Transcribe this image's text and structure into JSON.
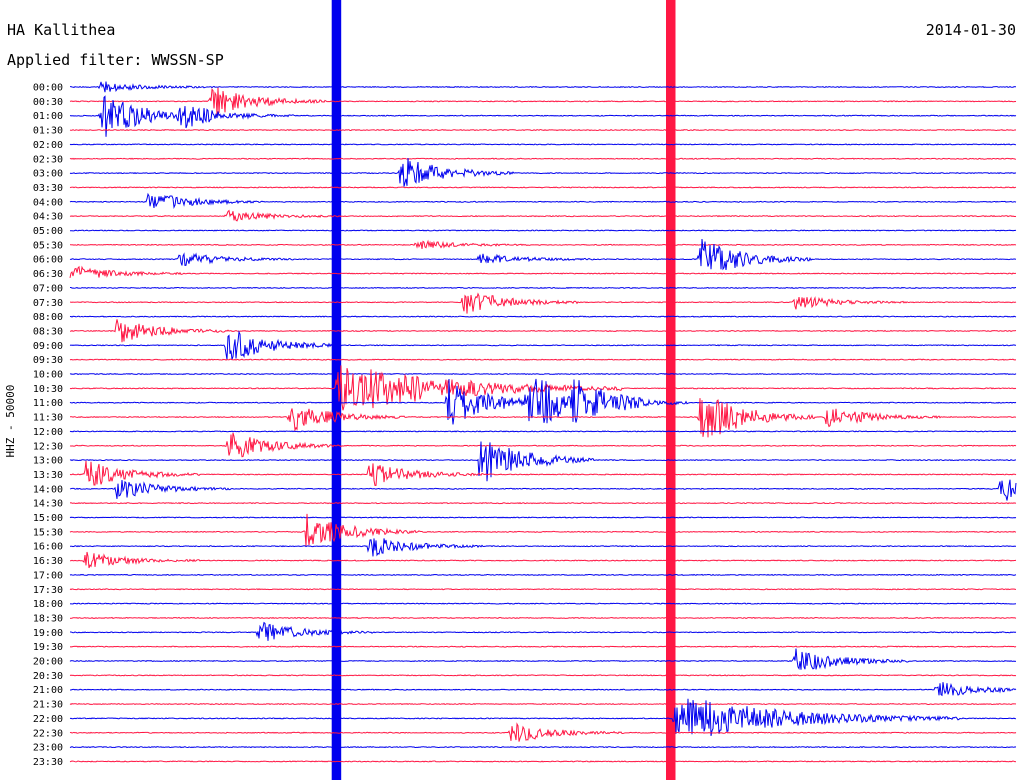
{
  "header": {
    "station": "HA Kallithea",
    "filter": "Applied filter: WWSSN-SP",
    "date": "2014-01-30"
  },
  "colors": {
    "trace_a": "#0000ee",
    "trace_b": "#ff1744",
    "background": "#ffffff",
    "text": "#000000"
  },
  "chart_data": {
    "type": "line",
    "title": "HA Kallithea",
    "subtitle": "Applied filter: WWSSN-SP",
    "date": "2014-01-30",
    "ylabel": "HHZ - 50000",
    "xlabel": "",
    "time_labels": [
      "00:00",
      "00:30",
      "01:00",
      "01:30",
      "02:00",
      "02:30",
      "03:00",
      "03:30",
      "04:00",
      "04:30",
      "05:00",
      "05:30",
      "06:00",
      "06:30",
      "07:00",
      "07:30",
      "08:00",
      "08:30",
      "09:00",
      "09:30",
      "10:00",
      "10:30",
      "11:00",
      "11:30",
      "12:00",
      "12:30",
      "13:00",
      "13:30",
      "14:00",
      "14:30",
      "15:00",
      "15:30",
      "16:00",
      "16:30",
      "17:00",
      "17:30",
      "18:00",
      "18:30",
      "19:00",
      "19:30",
      "20:00",
      "20:30",
      "21:00",
      "21:30",
      "22:00",
      "22:30",
      "23:00",
      "23:30"
    ],
    "trace_colors": [
      "#0000ee",
      "#ff1744"
    ],
    "trace_minutes": 30,
    "background_noise": 0.06,
    "events": [
      {
        "time": "00:00",
        "minute": 1,
        "amplitude": 0.8
      },
      {
        "time": "00:30",
        "minute": 4.5,
        "amplitude": 2.2
      },
      {
        "time": "01:00",
        "minute": 1,
        "amplitude": 3.5
      },
      {
        "time": "01:00",
        "minute": 3.5,
        "amplitude": 1.5
      },
      {
        "time": "03:00",
        "minute": 10.5,
        "amplitude": 2.5
      },
      {
        "time": "04:00",
        "minute": 2.5,
        "amplitude": 1.4
      },
      {
        "time": "04:30",
        "minute": 5,
        "amplitude": 0.8
      },
      {
        "time": "05:30",
        "minute": 11,
        "amplitude": 0.6
      },
      {
        "time": "06:00",
        "minute": 3.5,
        "amplitude": 1.0
      },
      {
        "time": "06:00",
        "minute": 13,
        "amplitude": 0.8
      },
      {
        "time": "06:00",
        "minute": 20,
        "amplitude": 3.0
      },
      {
        "time": "06:30",
        "minute": 0,
        "amplitude": 1.2
      },
      {
        "time": "07:30",
        "minute": 12.5,
        "amplitude": 1.8
      },
      {
        "time": "07:30",
        "minute": 23,
        "amplitude": 1.0
      },
      {
        "time": "08:30",
        "minute": 1.5,
        "amplitude": 1.8
      },
      {
        "time": "09:00",
        "minute": 5,
        "amplitude": 2.5
      },
      {
        "time": "11:00",
        "minute": 12,
        "amplitude": 3.5
      },
      {
        "time": "11:00",
        "minute": 14.5,
        "amplitude": 4.5
      },
      {
        "time": "11:00",
        "minute": 16,
        "amplitude": 2.5
      },
      {
        "time": "11:30",
        "minute": 7,
        "amplitude": 2.0
      },
      {
        "time": "11:30",
        "minute": 20,
        "amplitude": 4.0
      },
      {
        "time": "11:30",
        "minute": 24,
        "amplitude": 1.5
      },
      {
        "time": "12:30",
        "minute": 5,
        "amplitude": 2.2
      },
      {
        "time": "13:00",
        "minute": 13,
        "amplitude": 4.0
      },
      {
        "time": "13:30",
        "minute": 0.5,
        "amplitude": 2.0
      },
      {
        "time": "13:30",
        "minute": 9.5,
        "amplitude": 1.8
      },
      {
        "time": "14:00",
        "minute": 1.5,
        "amplitude": 1.5
      },
      {
        "time": "14:00",
        "minute": 29.5,
        "amplitude": 2.0
      },
      {
        "time": "15:30",
        "minute": 7.5,
        "amplitude": 2.5
      },
      {
        "time": "16:00",
        "minute": 9.5,
        "amplitude": 1.5
      },
      {
        "time": "16:30",
        "minute": 0.5,
        "amplitude": 1.2
      },
      {
        "time": "19:00",
        "minute": 6,
        "amplitude": 1.5
      },
      {
        "time": "20:00",
        "minute": 23,
        "amplitude": 2.0
      },
      {
        "time": "21:00",
        "minute": 27.5,
        "amplitude": 1.2
      },
      {
        "time": "22:30",
        "minute": 14,
        "amplitude": 1.5
      }
    ],
    "saturated_bands": [
      {
        "minute_start": 8.3,
        "minute_end": 8.6,
        "color": "#0000ee"
      },
      {
        "minute_start": 18.9,
        "minute_end": 19.2,
        "color": "#ff1744"
      }
    ],
    "long_events": [
      {
        "time": "10:30",
        "minute": 8.5,
        "amplitude": 4.0,
        "decay_minutes": 3
      },
      {
        "time": "22:00",
        "minute": 19.2,
        "amplitude": 3.5,
        "decay_minutes": 3
      }
    ]
  }
}
